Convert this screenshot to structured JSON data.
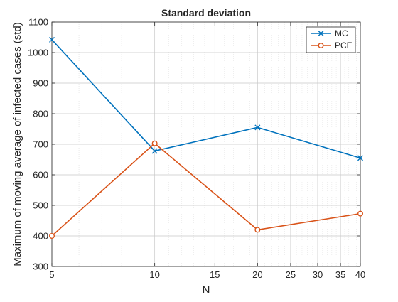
{
  "chart_data": {
    "type": "line",
    "title": "Standard deviation",
    "xlabel": "N",
    "ylabel": "Maximum of moving average of infected cases (std)",
    "xscale": "log",
    "xlim": [
      5,
      40
    ],
    "ylim": [
      300,
      1100
    ],
    "x_ticks": [
      5,
      10,
      15,
      20,
      25,
      30,
      35,
      40
    ],
    "y_ticks": [
      300,
      400,
      500,
      600,
      700,
      800,
      900,
      1000,
      1100
    ],
    "grid": true,
    "legend_position": "top-right",
    "series": [
      {
        "name": "MC",
        "marker": "x",
        "color": "#0072BD",
        "x": [
          5,
          10,
          20,
          40
        ],
        "y": [
          1042,
          678,
          755,
          655
        ]
      },
      {
        "name": "PCE",
        "marker": "o",
        "color": "#D95319",
        "x": [
          5,
          10,
          20,
          40
        ],
        "y": [
          400,
          703,
          420,
          473
        ]
      }
    ]
  }
}
